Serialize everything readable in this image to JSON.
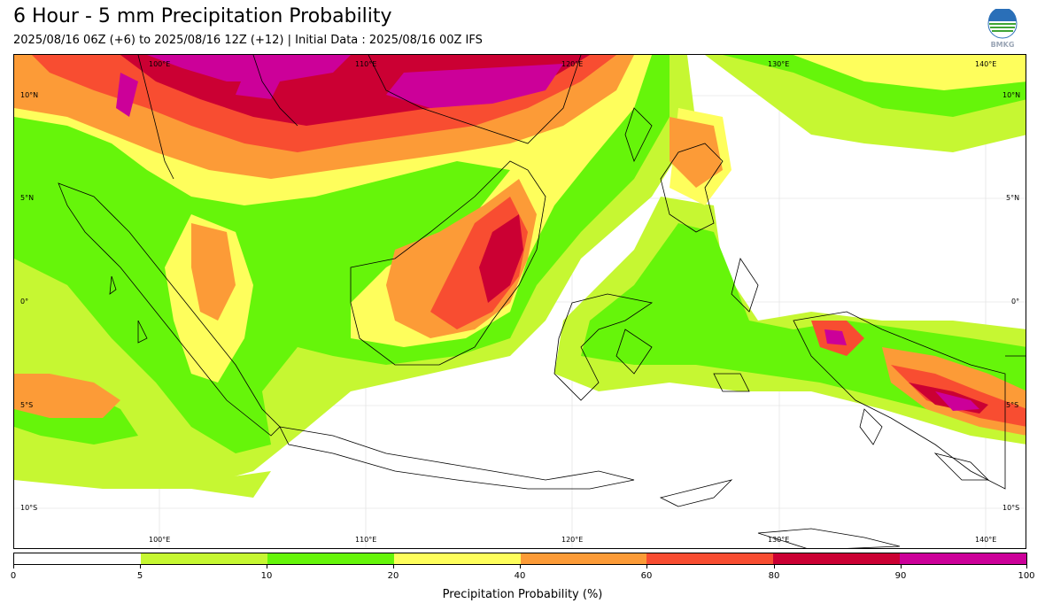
{
  "header": {
    "title": "6 Hour - 5 mm Precipitation Probability",
    "subtitle": "2025/08/16 06Z (+6) to 2025/08/16 12Z (+12) | Initial Data : 2025/08/16 00Z IFS",
    "logo_text": "BMKG"
  },
  "map": {
    "lon_labels": [
      "100°E",
      "110°E",
      "120°E",
      "130°E",
      "140°E"
    ],
    "lat_labels": [
      "10°N",
      "5°N",
      "0°",
      "5°S",
      "10°S"
    ]
  },
  "colorbar": {
    "label": "Precipitation Probability (%)",
    "ticks": [
      "0",
      "5",
      "10",
      "20",
      "40",
      "60",
      "80",
      "90",
      "100"
    ],
    "colors": [
      "#ffffff",
      "#c6f732",
      "#66f50a",
      "#fefe5c",
      "#fc9b37",
      "#f84d31",
      "#cb0033",
      "#cc0099"
    ]
  }
}
